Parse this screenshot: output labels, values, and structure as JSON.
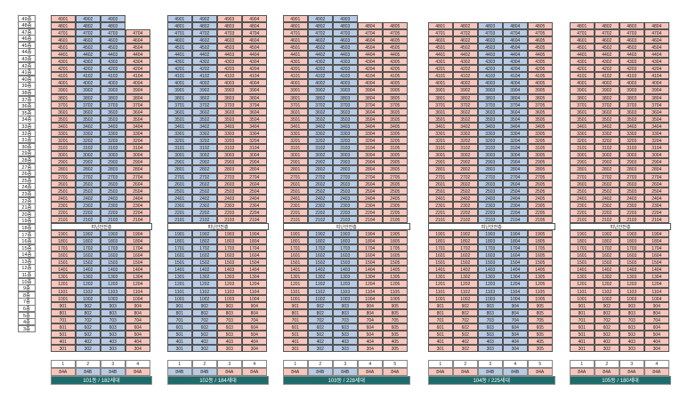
{
  "floors": [
    "49층",
    "48층",
    "47층",
    "46층",
    "45층",
    "44층",
    "43층",
    "42층",
    "41층",
    "40층",
    "39층",
    "38층",
    "37층",
    "36층",
    "35층",
    "34층",
    "33층",
    "32층",
    "31층",
    "30층",
    "29층",
    "28층",
    "27층",
    "26층",
    "25층",
    "24층",
    "23층",
    "22층",
    "21층",
    "20층",
    "19층",
    "18층",
    "17층",
    "16층",
    "15층",
    "14층",
    "13층",
    "12층",
    "11층",
    "10층",
    "9층",
    "8층",
    "7층",
    "6층",
    "5층",
    "4층",
    "3층"
  ],
  "refuge_label": "피난안전층",
  "buildings": [
    {
      "id": "101",
      "title": "101동 / 182세대",
      "lines": [
        1,
        2,
        3,
        4
      ],
      "types": [
        "84A",
        "84B",
        "84B",
        "84A"
      ],
      "top_floor": 49,
      "line_tops": [
        49,
        49,
        49,
        47
      ],
      "colors": [
        "pink",
        "blue",
        "blue",
        "pink"
      ]
    },
    {
      "id": "102",
      "title": "102동 / 184세대",
      "lines": [
        1,
        2,
        3,
        4
      ],
      "types": [
        "84B",
        "84B",
        "84A",
        "84A"
      ],
      "top_floor": 49,
      "line_tops": [
        49,
        49,
        49,
        49
      ],
      "colors": [
        "blue",
        "blue",
        "pink",
        "pink"
      ]
    },
    {
      "id": "103",
      "title": "103동 / 228세대",
      "lines": [
        1,
        2,
        3,
        4,
        5
      ],
      "types": [
        "84A",
        "84B",
        "84B",
        "84A",
        "84A"
      ],
      "top_floor": 49,
      "line_tops": [
        49,
        49,
        49,
        48,
        48
      ],
      "colors": [
        "pink",
        "blue",
        "blue",
        "pink",
        "pink"
      ]
    },
    {
      "id": "104",
      "title": "104동 / 225세대",
      "lines": [
        1,
        2,
        3,
        4,
        5
      ],
      "types": [
        "84A",
        "84A",
        "84B",
        "84B",
        "84A"
      ],
      "top_floor": 48,
      "line_tops": [
        48,
        48,
        48,
        48,
        48
      ],
      "colors": [
        "pink",
        "pink",
        "blue",
        "blue",
        "pink"
      ]
    },
    {
      "id": "105",
      "title": "105동 / 180세대",
      "lines": [
        1,
        2,
        3,
        4
      ],
      "types": [
        "84A",
        "84A",
        "84A",
        "84A"
      ],
      "top_floor": 48,
      "line_tops": [
        48,
        48,
        48,
        48
      ],
      "colors": [
        "pink",
        "pink",
        "pink",
        "pink"
      ]
    }
  ]
}
